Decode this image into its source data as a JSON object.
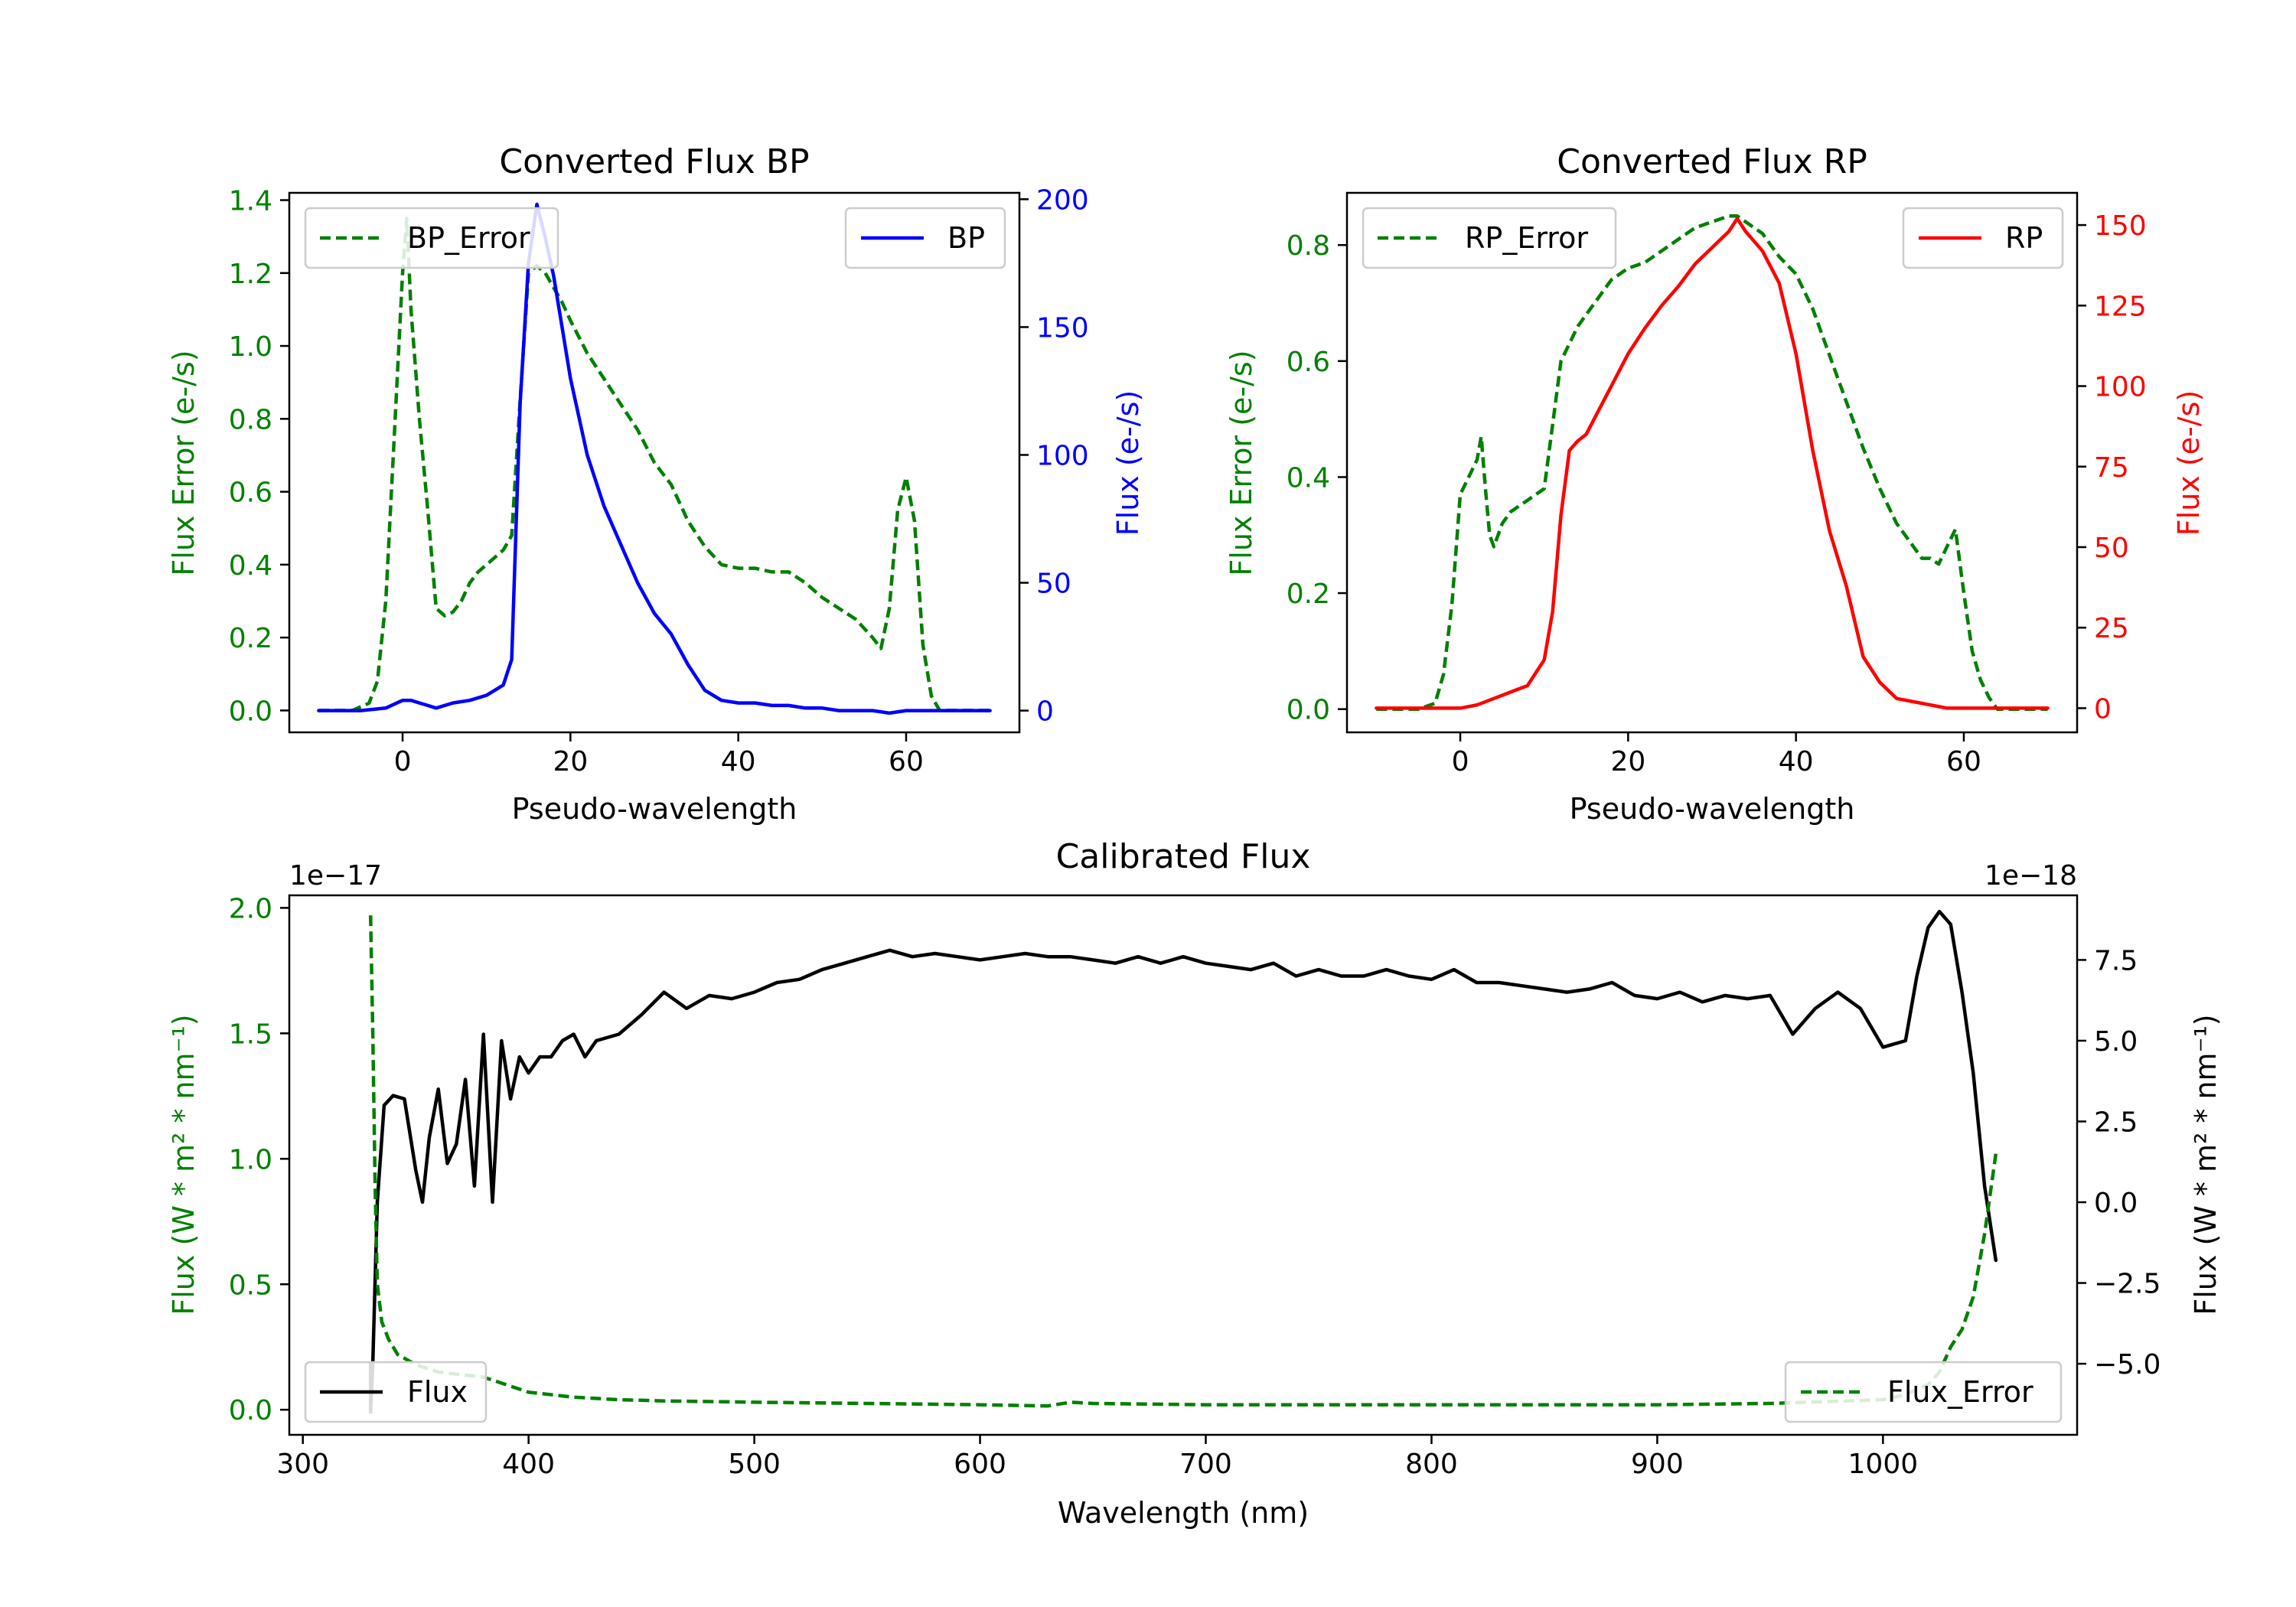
{
  "colors": {
    "bp": "#0000ff",
    "rp": "#ff0000",
    "error": "#008000",
    "flux": "#000000"
  },
  "chart_data": [
    {
      "id": "bp",
      "type": "line",
      "title": "Converted Flux BP",
      "xlabel": "Pseudo-wavelength",
      "ylabel_left": "Flux Error (e-/s)",
      "ylabel_right": "Flux (e-/s)",
      "xlim": [
        -13.5,
        73.5
      ],
      "ylim_left": [
        -0.06,
        1.42
      ],
      "ylim_right": [
        -8.5,
        202.5
      ],
      "xticks": [
        0,
        20,
        40,
        60
      ],
      "xtick_labels": [
        "0",
        "20",
        "40",
        "60"
      ],
      "yticks_left": [
        0.0,
        0.2,
        0.4,
        0.6,
        0.8,
        1.0,
        1.2,
        1.4
      ],
      "ytick_labels_left": [
        "0.0",
        "0.2",
        "0.4",
        "0.6",
        "0.8",
        "1.0",
        "1.2",
        "1.4"
      ],
      "yticks_right": [
        0,
        50,
        100,
        150,
        200
      ],
      "ytick_labels_right": [
        "0",
        "50",
        "100",
        "150",
        "200"
      ],
      "legend_left": {
        "label": "BP_Error",
        "placement": "upper left"
      },
      "legend_right": {
        "label": "BP",
        "placement": "upper right"
      },
      "series": [
        {
          "name": "BP_Error",
          "axis": "left",
          "color": "#008000",
          "dashed": true,
          "x": [
            -10,
            -6,
            -4,
            -3,
            -2,
            -1,
            0,
            0.5,
            1,
            2,
            3,
            4,
            5,
            6,
            7,
            8,
            9,
            10,
            12,
            13,
            14,
            15,
            16,
            17,
            18,
            19,
            20,
            22,
            24,
            26,
            28,
            30,
            32,
            34,
            36,
            38,
            40,
            42,
            44,
            46,
            48,
            50,
            52,
            54,
            56,
            57,
            58,
            59,
            60,
            61,
            62,
            63,
            64,
            66,
            68,
            70
          ],
          "y": [
            0,
            0,
            0.02,
            0.08,
            0.3,
            0.75,
            1.2,
            1.35,
            1.1,
            0.8,
            0.55,
            0.28,
            0.26,
            0.27,
            0.3,
            0.35,
            0.38,
            0.4,
            0.44,
            0.48,
            0.85,
            1.2,
            1.22,
            1.2,
            1.16,
            1.12,
            1.07,
            0.98,
            0.91,
            0.84,
            0.77,
            0.68,
            0.62,
            0.52,
            0.45,
            0.4,
            0.39,
            0.39,
            0.38,
            0.38,
            0.35,
            0.31,
            0.28,
            0.25,
            0.2,
            0.17,
            0.28,
            0.55,
            0.64,
            0.52,
            0.18,
            0.04,
            0,
            0,
            0,
            0
          ]
        },
        {
          "name": "BP",
          "axis": "right",
          "color": "#0000ff",
          "dashed": false,
          "x": [
            -10,
            -5,
            -2,
            0,
            1,
            2,
            3,
            4,
            6,
            8,
            10,
            11,
            12,
            13,
            14,
            15,
            16,
            17,
            18,
            19,
            20,
            22,
            24,
            26,
            28,
            30,
            32,
            34,
            36,
            38,
            40,
            42,
            44,
            46,
            48,
            50,
            52,
            54,
            56,
            58,
            60,
            62,
            64,
            66,
            68,
            70
          ],
          "y": [
            0,
            0,
            1,
            4,
            4,
            3,
            2,
            1,
            3,
            4,
            6,
            8,
            10,
            20,
            120,
            175,
            198,
            185,
            170,
            150,
            130,
            100,
            80,
            65,
            50,
            38,
            30,
            18,
            8,
            4,
            3,
            3,
            2,
            2,
            1,
            1,
            0,
            0,
            0,
            -1,
            0,
            0,
            0,
            0,
            0,
            0
          ]
        }
      ]
    },
    {
      "id": "rp",
      "type": "line",
      "title": "Converted Flux RP",
      "xlabel": "Pseudo-wavelength",
      "ylabel_left": "Flux Error (e-/s)",
      "ylabel_right": "Flux (e-/s)",
      "xlim": [
        -13.5,
        73.5
      ],
      "ylim_left": [
        -0.04,
        0.89
      ],
      "ylim_right": [
        -7.5,
        160
      ],
      "xticks": [
        0,
        20,
        40,
        60
      ],
      "xtick_labels": [
        "0",
        "20",
        "40",
        "60"
      ],
      "yticks_left": [
        0.0,
        0.2,
        0.4,
        0.6,
        0.8
      ],
      "ytick_labels_left": [
        "0.0",
        "0.2",
        "0.4",
        "0.6",
        "0.8"
      ],
      "yticks_right": [
        0,
        25,
        50,
        75,
        100,
        125,
        150
      ],
      "ytick_labels_right": [
        "0",
        "25",
        "50",
        "75",
        "100",
        "125",
        "150"
      ],
      "legend_left": {
        "label": "RP_Error",
        "placement": "upper left"
      },
      "legend_right": {
        "label": "RP",
        "placement": "upper right"
      },
      "series": [
        {
          "name": "RP_Error",
          "axis": "left",
          "color": "#008000",
          "dashed": true,
          "x": [
            -10,
            -5,
            -3,
            -2,
            -1,
            0,
            1,
            2,
            2.5,
            3,
            3.5,
            4,
            5,
            6,
            8,
            10,
            12,
            13,
            14,
            16,
            18,
            20,
            22,
            24,
            26,
            28,
            30,
            32,
            33,
            34,
            36,
            38,
            40,
            42,
            44,
            46,
            48,
            50,
            52,
            54,
            55,
            56,
            57,
            58,
            59,
            60,
            61,
            62,
            63,
            64,
            66,
            68,
            70
          ],
          "y": [
            0,
            0,
            0.01,
            0.06,
            0.18,
            0.37,
            0.4,
            0.43,
            0.47,
            0.38,
            0.3,
            0.28,
            0.32,
            0.34,
            0.36,
            0.38,
            0.6,
            0.63,
            0.66,
            0.7,
            0.74,
            0.76,
            0.77,
            0.79,
            0.81,
            0.83,
            0.84,
            0.85,
            0.85,
            0.84,
            0.82,
            0.78,
            0.75,
            0.69,
            0.61,
            0.53,
            0.45,
            0.38,
            0.32,
            0.28,
            0.26,
            0.26,
            0.25,
            0.28,
            0.31,
            0.2,
            0.1,
            0.05,
            0.02,
            0,
            0,
            0,
            0
          ]
        },
        {
          "name": "RP",
          "axis": "right",
          "color": "#ff0000",
          "dashed": false,
          "x": [
            -10,
            -5,
            0,
            2,
            4,
            6,
            8,
            10,
            11,
            12,
            13,
            14,
            15,
            16,
            18,
            20,
            22,
            24,
            26,
            28,
            30,
            32,
            33,
            34,
            36,
            38,
            40,
            42,
            44,
            46,
            48,
            50,
            52,
            54,
            56,
            58,
            60,
            62,
            64,
            66,
            68,
            70
          ],
          "y": [
            0,
            0,
            0,
            1,
            3,
            5,
            7,
            15,
            30,
            60,
            80,
            83,
            85,
            90,
            100,
            110,
            118,
            125,
            131,
            138,
            143,
            148,
            152,
            148,
            142,
            132,
            110,
            80,
            55,
            38,
            16,
            8,
            3,
            2,
            1,
            0,
            0,
            0,
            0,
            0,
            0,
            0
          ]
        }
      ]
    },
    {
      "id": "calibrated",
      "type": "line",
      "title": "Calibrated Flux",
      "xlabel": "Wavelength (nm)",
      "ylabel_left": "Flux (W * m² * nm⁻¹)",
      "ylabel_right": "Flux (W * m² * nm⁻¹)",
      "offset_left": "1e−17",
      "offset_right": "1e−18",
      "xlim": [
        294,
        1086
      ],
      "ylim_left": [
        -0.1,
        2.05
      ],
      "ylim_right": [
        -7.2,
        9.5
      ],
      "xticks": [
        300,
        400,
        500,
        600,
        700,
        800,
        900,
        1000
      ],
      "xtick_labels": [
        "300",
        "400",
        "500",
        "600",
        "700",
        "800",
        "900",
        "1000"
      ],
      "yticks_left": [
        0.0,
        0.5,
        1.0,
        1.5,
        2.0
      ],
      "ytick_labels_left": [
        "0.0",
        "0.5",
        "1.0",
        "1.5",
        "2.0"
      ],
      "yticks_right": [
        -5.0,
        -2.5,
        0.0,
        2.5,
        5.0,
        7.5
      ],
      "ytick_labels_right": [
        "−5.0",
        "−2.5",
        "0.0",
        "2.5",
        "5.0",
        "7.5"
      ],
      "legend_left": {
        "label": "Flux",
        "placement": "lower left"
      },
      "legend_right": {
        "label": "Flux_Error",
        "placement": "lower right"
      },
      "series": [
        {
          "name": "Flux",
          "axis": "right",
          "color": "#000000",
          "dashed": false,
          "x": [
            330,
            330,
            331,
            333,
            336,
            340,
            345,
            350,
            353,
            356,
            360,
            364,
            368,
            372,
            376,
            380,
            384,
            388,
            392,
            396,
            400,
            405,
            410,
            415,
            420,
            425,
            430,
            440,
            450,
            460,
            470,
            480,
            490,
            500,
            510,
            520,
            530,
            540,
            550,
            560,
            570,
            580,
            590,
            600,
            610,
            620,
            630,
            640,
            650,
            660,
            670,
            680,
            690,
            700,
            710,
            720,
            730,
            740,
            750,
            760,
            770,
            780,
            790,
            800,
            810,
            820,
            830,
            840,
            850,
            860,
            870,
            880,
            890,
            900,
            910,
            920,
            930,
            940,
            950,
            960,
            970,
            980,
            990,
            1000,
            1010,
            1015,
            1020,
            1025,
            1030,
            1035,
            1040,
            1045,
            1050
          ],
          "y": [
            -5.0,
            -6.5,
            -5.0,
            0.0,
            3.0,
            3.3,
            3.2,
            1.0,
            0.0,
            2.0,
            3.5,
            1.2,
            1.8,
            3.8,
            0.5,
            5.2,
            0.0,
            5.0,
            3.2,
            4.5,
            4.0,
            4.5,
            4.5,
            5.0,
            5.2,
            4.5,
            5.0,
            5.2,
            5.8,
            6.5,
            6.0,
            6.4,
            6.3,
            6.5,
            6.8,
            6.9,
            7.2,
            7.4,
            7.6,
            7.8,
            7.6,
            7.7,
            7.6,
            7.5,
            7.6,
            7.7,
            7.6,
            7.6,
            7.5,
            7.4,
            7.6,
            7.4,
            7.6,
            7.4,
            7.3,
            7.2,
            7.4,
            7.0,
            7.2,
            7.0,
            7.0,
            7.2,
            7.0,
            6.9,
            7.2,
            6.8,
            6.8,
            6.7,
            6.6,
            6.5,
            6.6,
            6.8,
            6.4,
            6.3,
            6.5,
            6.2,
            6.4,
            6.3,
            6.4,
            5.2,
            6.0,
            6.5,
            6.0,
            4.8,
            5.0,
            7.0,
            8.5,
            9.0,
            8.6,
            6.5,
            4.0,
            0.5,
            -1.8
          ]
        },
        {
          "name": "Flux_Error",
          "axis": "left",
          "color": "#008000",
          "dashed": true,
          "x": [
            330,
            331,
            332,
            333,
            335,
            338,
            342,
            350,
            360,
            370,
            380,
            390,
            400,
            420,
            440,
            460,
            500,
            550,
            600,
            630,
            640,
            650,
            700,
            750,
            800,
            850,
            900,
            950,
            1000,
            1010,
            1020,
            1025,
            1030,
            1035,
            1040,
            1045,
            1050
          ],
          "y": [
            1.97,
            1.5,
            0.9,
            0.5,
            0.35,
            0.28,
            0.22,
            0.18,
            0.15,
            0.14,
            0.13,
            0.1,
            0.07,
            0.05,
            0.04,
            0.035,
            0.03,
            0.025,
            0.02,
            0.015,
            0.03,
            0.025,
            0.02,
            0.02,
            0.02,
            0.02,
            0.02,
            0.025,
            0.04,
            0.06,
            0.1,
            0.15,
            0.25,
            0.32,
            0.45,
            0.7,
            1.02
          ]
        }
      ]
    }
  ]
}
